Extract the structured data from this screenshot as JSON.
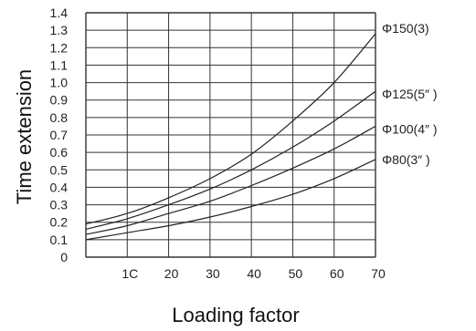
{
  "chart_data": {
    "type": "line",
    "xlabel": "Loading factor",
    "ylabel": "Time extension",
    "xlim": [
      0,
      70
    ],
    "ylim": [
      0,
      1.4
    ],
    "x_ticks": [
      "1C",
      "20",
      "30",
      "40",
      "50",
      "60",
      "70"
    ],
    "x_tick_values": [
      10,
      20,
      30,
      40,
      50,
      60,
      70
    ],
    "y_ticks": [
      "0",
      "0.1",
      "0.2",
      "0.3",
      "0.4",
      "0.5",
      "0.6",
      "0.7",
      "0.8",
      "0.9",
      "1.0",
      "1.1",
      "1.2",
      "1.3",
      "1.4"
    ],
    "y_tick_values": [
      0,
      0.1,
      0.2,
      0.3,
      0.4,
      0.5,
      0.6,
      0.7,
      0.8,
      0.9,
      1.0,
      1.1,
      1.2,
      1.3,
      1.4
    ],
    "grid": true,
    "x_grid_step": 10,
    "y_grid_step": 0.1,
    "legend_placement": "right, at line ends",
    "line_color": "#222222",
    "series": [
      {
        "name": "Φ150(3)",
        "x": [
          0,
          10,
          20,
          30,
          40,
          50,
          60,
          70
        ],
        "y": [
          0.19,
          0.25,
          0.34,
          0.45,
          0.59,
          0.78,
          1.0,
          1.28
        ]
      },
      {
        "name": "Φ125(5″ )",
        "x": [
          0,
          10,
          20,
          30,
          40,
          50,
          60,
          70
        ],
        "y": [
          0.16,
          0.22,
          0.3,
          0.39,
          0.5,
          0.63,
          0.78,
          0.95
        ]
      },
      {
        "name": "Φ100(4″ )",
        "x": [
          0,
          10,
          20,
          30,
          40,
          50,
          60,
          70
        ],
        "y": [
          0.13,
          0.18,
          0.25,
          0.32,
          0.41,
          0.51,
          0.62,
          0.75
        ]
      },
      {
        "name": "Φ80(3″ )",
        "x": [
          0,
          10,
          20,
          30,
          40,
          50,
          60,
          70
        ],
        "y": [
          0.1,
          0.14,
          0.18,
          0.23,
          0.29,
          0.36,
          0.45,
          0.56
        ]
      }
    ]
  }
}
